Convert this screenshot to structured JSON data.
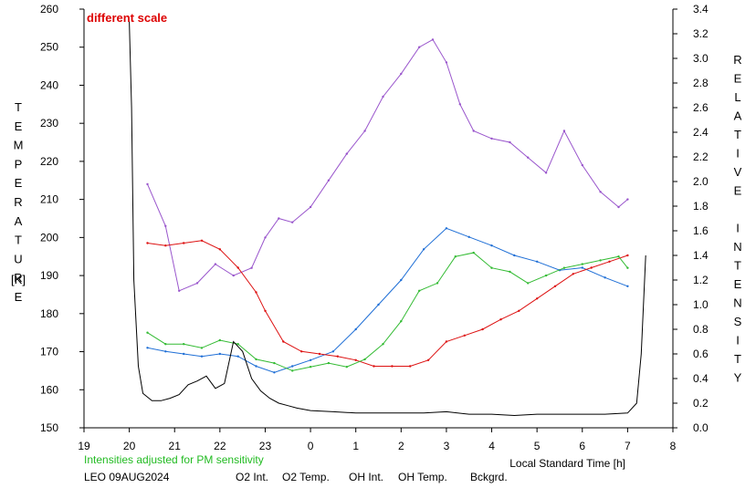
{
  "chart_data": {
    "type": "line",
    "title": "",
    "annotation": "different scale",
    "annotation_color": "#dd0000",
    "note": "Intensities adjusted for PM sensitivity",
    "note_color": "#22bb22",
    "station": "LEO 09AUG2024",
    "xlabel": "Local Standard Time [h]",
    "ylabel_left": "TEMPERATURE",
    "ylabel_left_unit": "[K]",
    "ylabel_right": "RELATIVE INTENSITY",
    "x_tick_labels": [
      "19",
      "20",
      "21",
      "22",
      "23",
      "0",
      "1",
      "2",
      "3",
      "4",
      "5",
      "6",
      "7",
      "8"
    ],
    "xlim": [
      19,
      32
    ],
    "y_left_ticks": [
      "150",
      "160",
      "170",
      "180",
      "190",
      "200",
      "210",
      "220",
      "230",
      "240",
      "250",
      "260"
    ],
    "ylim_left": [
      150,
      260
    ],
    "y_right_ticks": [
      "0.0",
      "0.2",
      "0.4",
      "0.6",
      "0.8",
      "1.0",
      "1.2",
      "1.4",
      "1.6",
      "1.8",
      "2.0",
      "2.2",
      "2.4",
      "2.6",
      "2.8",
      "3.0",
      "3.2",
      "3.4"
    ],
    "ylim_right": [
      0,
      3.4
    ],
    "grid": false,
    "legend_position": "bottom",
    "series": [
      {
        "name": "O2 Int.",
        "axis": "right",
        "color": "#1f6fd6",
        "x": [
          20.4,
          20.8,
          21.2,
          21.6,
          22.0,
          22.4,
          22.8,
          23.2,
          23.6,
          24.0,
          24.5,
          25.0,
          25.5,
          26.0,
          26.5,
          27.0,
          27.5,
          28.0,
          28.5,
          29.0,
          29.5,
          30.0,
          30.5,
          31.0
        ],
        "y": [
          0.65,
          0.62,
          0.6,
          0.58,
          0.6,
          0.58,
          0.5,
          0.45,
          0.5,
          0.55,
          0.62,
          0.8,
          1.0,
          1.2,
          1.45,
          1.62,
          1.55,
          1.48,
          1.4,
          1.35,
          1.28,
          1.3,
          1.22,
          1.15
        ]
      },
      {
        "name": "O2 Temp.",
        "axis": "left",
        "color": "#9955cc",
        "x": [
          20.4,
          20.8,
          21.1,
          21.5,
          21.9,
          22.3,
          22.7,
          23.0,
          23.3,
          23.6,
          24.0,
          24.4,
          24.8,
          25.2,
          25.6,
          26.0,
          26.4,
          26.7,
          27.0,
          27.3,
          27.6,
          28.0,
          28.4,
          28.8,
          29.2,
          29.6,
          30.0,
          30.4,
          30.8,
          31.0
        ],
        "y": [
          214,
          203,
          186,
          188,
          193,
          190,
          192,
          200,
          205,
          204,
          208,
          215,
          222,
          228,
          237,
          243,
          250,
          252,
          246,
          235,
          228,
          226,
          225,
          221,
          217,
          228,
          219,
          212,
          208,
          210
        ]
      },
      {
        "name": "OH Int.",
        "axis": "right",
        "color": "#dd1111",
        "x": [
          20.4,
          20.8,
          21.2,
          21.6,
          22.0,
          22.4,
          22.8,
          23.0,
          23.4,
          23.8,
          24.2,
          24.6,
          25.0,
          25.4,
          25.8,
          26.2,
          26.6,
          27.0,
          27.4,
          27.8,
          28.2,
          28.6,
          29.0,
          29.4,
          29.8,
          30.2,
          30.6,
          31.0
        ],
        "y": [
          1.5,
          1.48,
          1.5,
          1.52,
          1.45,
          1.3,
          1.1,
          0.95,
          0.7,
          0.62,
          0.6,
          0.58,
          0.55,
          0.5,
          0.5,
          0.5,
          0.55,
          0.7,
          0.75,
          0.8,
          0.88,
          0.95,
          1.05,
          1.15,
          1.25,
          1.3,
          1.35,
          1.4
        ]
      },
      {
        "name": "OH Temp.",
        "axis": "left",
        "color": "#33bb33",
        "x": [
          20.4,
          20.8,
          21.2,
          21.6,
          22.0,
          22.4,
          22.8,
          23.2,
          23.6,
          24.0,
          24.4,
          24.8,
          25.2,
          25.6,
          26.0,
          26.4,
          26.8,
          27.2,
          27.6,
          28.0,
          28.4,
          28.8,
          29.2,
          29.6,
          30.0,
          30.4,
          30.8,
          31.0
        ],
        "y": [
          175,
          172,
          172,
          171,
          173,
          172,
          168,
          167,
          165,
          166,
          167,
          166,
          168,
          172,
          178,
          186,
          188,
          195,
          196,
          192,
          191,
          188,
          190,
          192,
          193,
          194,
          195,
          192
        ]
      },
      {
        "name": "Bckgrd.",
        "axis": "right",
        "color": "#000000",
        "x": [
          20.0,
          20.05,
          20.1,
          20.2,
          20.3,
          20.5,
          20.7,
          20.9,
          21.1,
          21.3,
          21.5,
          21.7,
          21.9,
          22.1,
          22.3,
          22.5,
          22.7,
          22.9,
          23.1,
          23.3,
          23.5,
          23.7,
          24.0,
          24.5,
          25.0,
          25.5,
          26.0,
          26.5,
          27.0,
          27.5,
          28.0,
          28.5,
          29.0,
          29.5,
          30.0,
          30.5,
          31.0,
          31.2,
          31.3,
          31.4
        ],
        "y": [
          3.3,
          2.6,
          1.2,
          0.5,
          0.28,
          0.22,
          0.22,
          0.24,
          0.27,
          0.35,
          0.38,
          0.42,
          0.32,
          0.36,
          0.7,
          0.62,
          0.4,
          0.3,
          0.24,
          0.2,
          0.18,
          0.16,
          0.14,
          0.13,
          0.12,
          0.12,
          0.12,
          0.12,
          0.13,
          0.11,
          0.11,
          0.1,
          0.11,
          0.11,
          0.11,
          0.11,
          0.12,
          0.2,
          0.6,
          1.4
        ]
      }
    ]
  }
}
